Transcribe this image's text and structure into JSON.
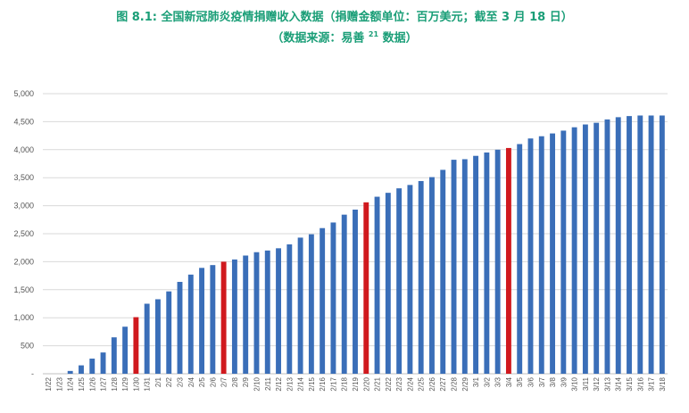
{
  "title": {
    "line1": "图 8.1: 全国新冠肺炎疫情捐赠收入数据（捐赠金额单位：百万美元；截至 3 月 18 日）",
    "line2_before": "（数据来源：易善 ",
    "line2_sup": "21",
    "line2_after": " 数据）"
  },
  "colors": {
    "normal": "#3a6eb8",
    "highlight": "#d0191e",
    "title": "#1a9e77",
    "grid": "#d9d9d9"
  },
  "chart_data": {
    "type": "bar",
    "title": "图 8.1: 全国新冠肺炎疫情捐赠收入数据（捐赠金额单位：百万美元；截至 3 月 18 日）",
    "ylim": [
      0,
      5000
    ],
    "yticks": [
      "-",
      "500",
      "1,000",
      "1,500",
      "2,000",
      "2,500",
      "3,000",
      "3,500",
      "4,000",
      "4,500",
      "5,000"
    ],
    "grid": true,
    "categories": [
      "1/22",
      "1/23",
      "1/24",
      "1/25",
      "1/26",
      "1/27",
      "1/28",
      "1/29",
      "1/30",
      "1/31",
      "2/1",
      "2/2",
      "2/3",
      "2/4",
      "2/5",
      "2/6",
      "2/7",
      "2/8",
      "2/9",
      "2/10",
      "2/11",
      "2/12",
      "2/13",
      "2/14",
      "2/15",
      "2/16",
      "2/17",
      "2/18",
      "2/19",
      "2/20",
      "2/21",
      "2/22",
      "2/23",
      "2/24",
      "2/25",
      "2/26",
      "2/27",
      "2/28",
      "2/29",
      "3/1",
      "3/2",
      "3/3",
      "3/4",
      "3/5",
      "3/6",
      "3/7",
      "3/8",
      "3/9",
      "3/10",
      "3/11",
      "3/12",
      "3/13",
      "3/14",
      "3/15",
      "3/16",
      "3/17",
      "3/18"
    ],
    "values": [
      0,
      0,
      50,
      150,
      270,
      380,
      650,
      840,
      1010,
      1250,
      1330,
      1470,
      1640,
      1770,
      1890,
      1940,
      2000,
      2040,
      2110,
      2170,
      2200,
      2240,
      2310,
      2430,
      2490,
      2600,
      2700,
      2840,
      2930,
      3060,
      3160,
      3230,
      3310,
      3370,
      3440,
      3510,
      3640,
      3820,
      3830,
      3890,
      3950,
      4000,
      4030,
      4100,
      4200,
      4240,
      4290,
      4340,
      4400,
      4450,
      4480,
      4540,
      4580,
      4600,
      4610,
      4610,
      4610
    ],
    "highlight": [
      "1/30",
      "2/7",
      "2/20",
      "3/4"
    ]
  }
}
